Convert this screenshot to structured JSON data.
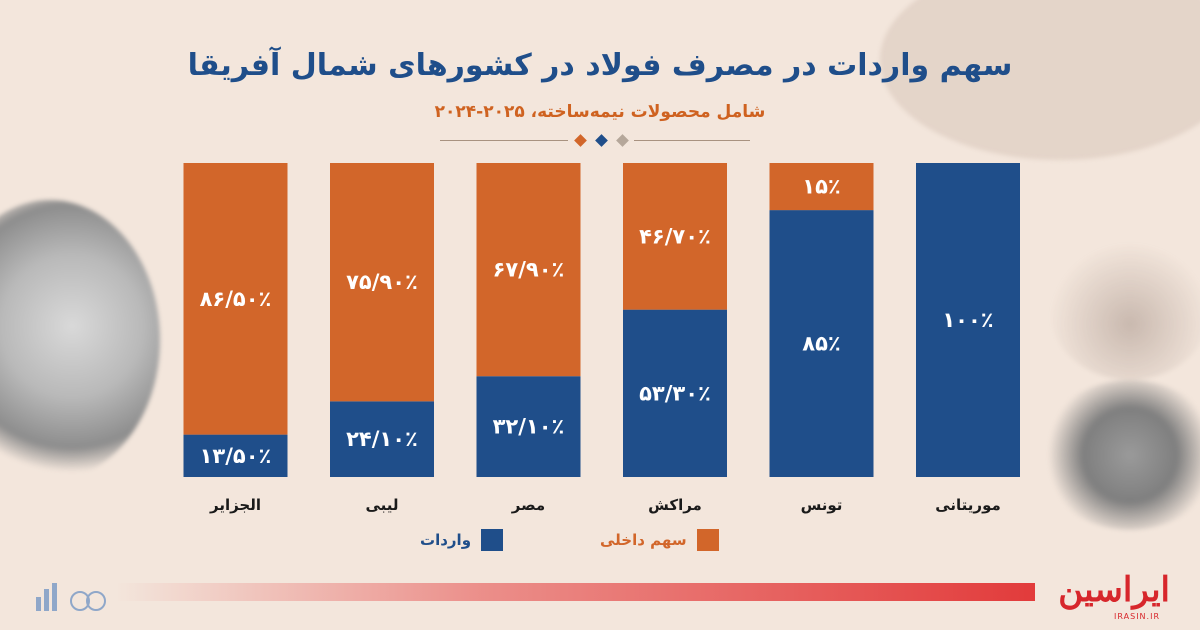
{
  "title": "سهم واردات در مصرف فولاد در کشورهای شمال آفریقا",
  "subtitle": "شامل محصولات نیمه‌ساخته، ۲۰۲۵-۲۰۲۴",
  "brand": {
    "name": "ایراسین",
    "site": "IRASIN.IR"
  },
  "colors": {
    "imports": "#1f4e8a",
    "domestic": "#d2662a",
    "background": "#f3e6dc",
    "title": "#1f4e8a",
    "subtitle": "#cf6220",
    "brand": "#d7262b"
  },
  "chart_data": {
    "type": "bar",
    "stacked": true,
    "percent": true,
    "categories": [
      "موریتانی",
      "تونس",
      "مراکش",
      "مصر",
      "لیبی",
      "الجزایر"
    ],
    "series": [
      {
        "name": "واردات",
        "values": [
          100,
          85,
          53.3,
          32.1,
          24.1,
          13.5
        ],
        "labels": [
          "۱۰۰٪",
          "۸۵٪",
          "۵۳/۳۰٪",
          "۳۲/۱۰٪",
          "۲۴/۱۰٪",
          "۱۳/۵۰٪"
        ]
      },
      {
        "name": "سهم داخلی",
        "values": [
          0,
          15,
          46.7,
          67.9,
          75.9,
          86.5
        ],
        "labels": [
          "",
          "۱۵٪",
          "۴۶/۷۰٪",
          "۶۷/۹۰٪",
          "۷۵/۹۰٪",
          "۸۶/۵۰٪"
        ]
      }
    ],
    "ylim": [
      0,
      100
    ],
    "grid": false,
    "legend_position": "bottom"
  }
}
